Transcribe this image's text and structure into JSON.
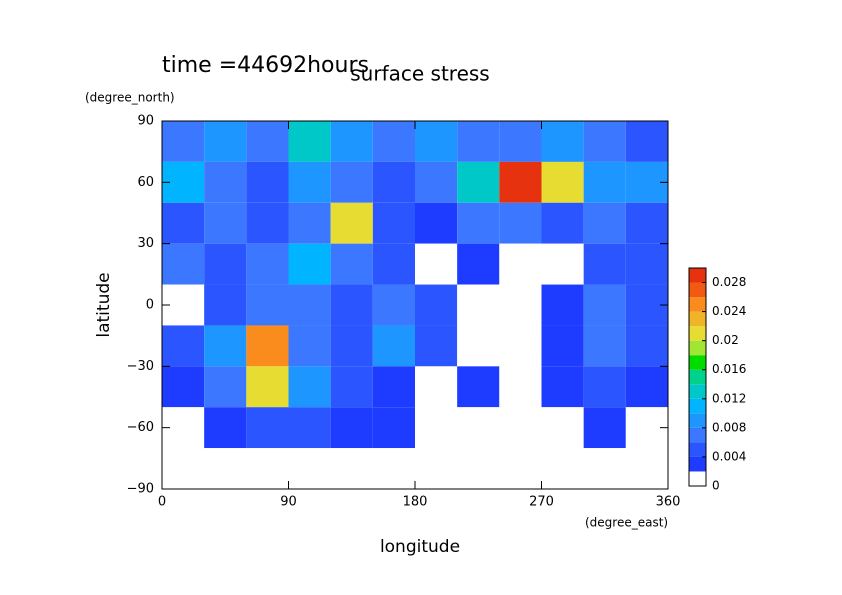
{
  "chart_data": {
    "type": "contour",
    "time_label": "time =44692hours",
    "title": "surface stress",
    "y_unit": "(degree_north)",
    "y_label": "latitude",
    "x_label": "longitude",
    "x_unit": "(degree_east)",
    "xlim": [
      0,
      360
    ],
    "ylim": [
      -90,
      90
    ],
    "xticks": [
      0,
      90,
      180,
      270,
      360
    ],
    "yticks": [
      {
        "value": -90,
        "label": "−90"
      },
      {
        "value": -60,
        "label": "−60"
      },
      {
        "value": -30,
        "label": "−30"
      },
      0,
      30,
      60,
      90
    ],
    "x": [
      15,
      45,
      75,
      105,
      135,
      165,
      195,
      225,
      255,
      285,
      315,
      345
    ],
    "y": [
      80,
      60,
      40,
      20,
      0,
      -20,
      -40,
      -60,
      -80
    ],
    "z": [
      [
        0.006,
        0.008,
        0.006,
        0.012,
        0.008,
        0.006,
        0.008,
        0.006,
        0.006,
        0.008,
        0.006,
        0.004
      ],
      [
        0.01,
        0.006,
        0.004,
        0.008,
        0.006,
        0.004,
        0.006,
        0.012,
        0.03,
        0.02,
        0.008,
        0.008
      ],
      [
        0.004,
        0.006,
        0.004,
        0.006,
        0.02,
        0.004,
        0.002,
        0.006,
        0.006,
        0.004,
        0.006,
        0.004
      ],
      [
        0.006,
        0.004,
        0.006,
        0.01,
        0.006,
        0.004,
        0,
        0.002,
        0,
        0,
        0.004,
        0.004
      ],
      [
        0,
        0.004,
        0.006,
        0.006,
        0.004,
        0.006,
        0.004,
        0,
        0,
        0.002,
        0.006,
        0.004
      ],
      [
        0.004,
        0.008,
        0.024,
        0.006,
        0.004,
        0.008,
        0.004,
        0,
        0,
        0.002,
        0.006,
        0.004
      ],
      [
        0.002,
        0.006,
        0.02,
        0.008,
        0.004,
        0.002,
        0,
        0.002,
        0,
        0.002,
        0.004,
        0.002
      ],
      [
        0,
        0.002,
        0.004,
        0.004,
        0.002,
        0.002,
        0,
        0,
        0,
        0,
        0.002,
        0
      ],
      [
        0,
        0,
        0,
        0,
        0,
        0,
        0,
        0,
        0,
        0,
        0,
        0
      ]
    ],
    "levels": [
      0,
      0.002,
      0.004,
      0.006,
      0.008,
      0.01,
      0.012,
      0.014,
      0.016,
      0.018,
      0.02,
      0.022,
      0.024,
      0.026,
      0.028,
      0.03
    ],
    "colors": [
      "#ffffff",
      "#1e3cff",
      "#2a55ff",
      "#3c78ff",
      "#1e96ff",
      "#00b4ff",
      "#00c8c8",
      "#00d28c",
      "#00dc00",
      "#a0e632",
      "#e6dc32",
      "#f0b428",
      "#fa8c1e",
      "#f05a14",
      "#e6320f"
    ],
    "cbar_ticks": [
      0,
      0.004,
      0.008,
      0.012,
      0.016,
      0.02,
      0.024,
      0.028
    ]
  }
}
